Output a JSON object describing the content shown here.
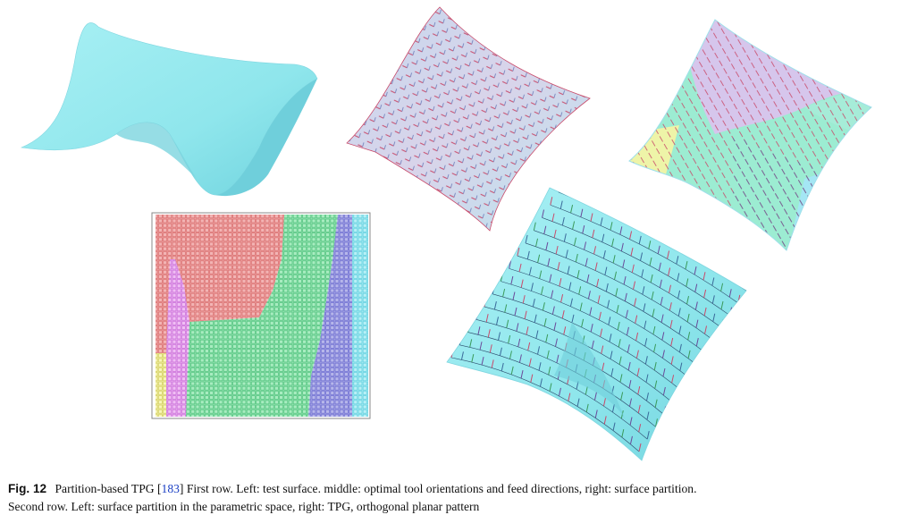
{
  "caption": {
    "label": "Fig. 12",
    "text_before": "Partition-based TPG [",
    "citation": "183",
    "text_after": "] First row. Left: test surface. middle: optimal tool orientations and feed directions, right: surface partition.",
    "line2": "Second row. Left: surface partition in the parametric space, right: TPG, orthogonal planar pattern"
  },
  "colors": {
    "surface": "#8fe6ec",
    "surface_shade": "#5fc9d6",
    "red_partition": "#f0a0a0",
    "green_partition": "#8ee0a8",
    "blue_partition": "#9a9ade",
    "pink_partition": "#e8a6ee",
    "yellow_partition": "#f4f2a2",
    "cyan_partition": "#9ee6f0",
    "tool_mark": "#c94a6a",
    "feed_mark": "#3a6a9a"
  },
  "panels": [
    {
      "name": "test-surface"
    },
    {
      "name": "tool-orientation-surface"
    },
    {
      "name": "surface-partition-3d"
    },
    {
      "name": "parametric-partition-grid"
    },
    {
      "name": "tpg-orthogonal-pattern"
    }
  ]
}
